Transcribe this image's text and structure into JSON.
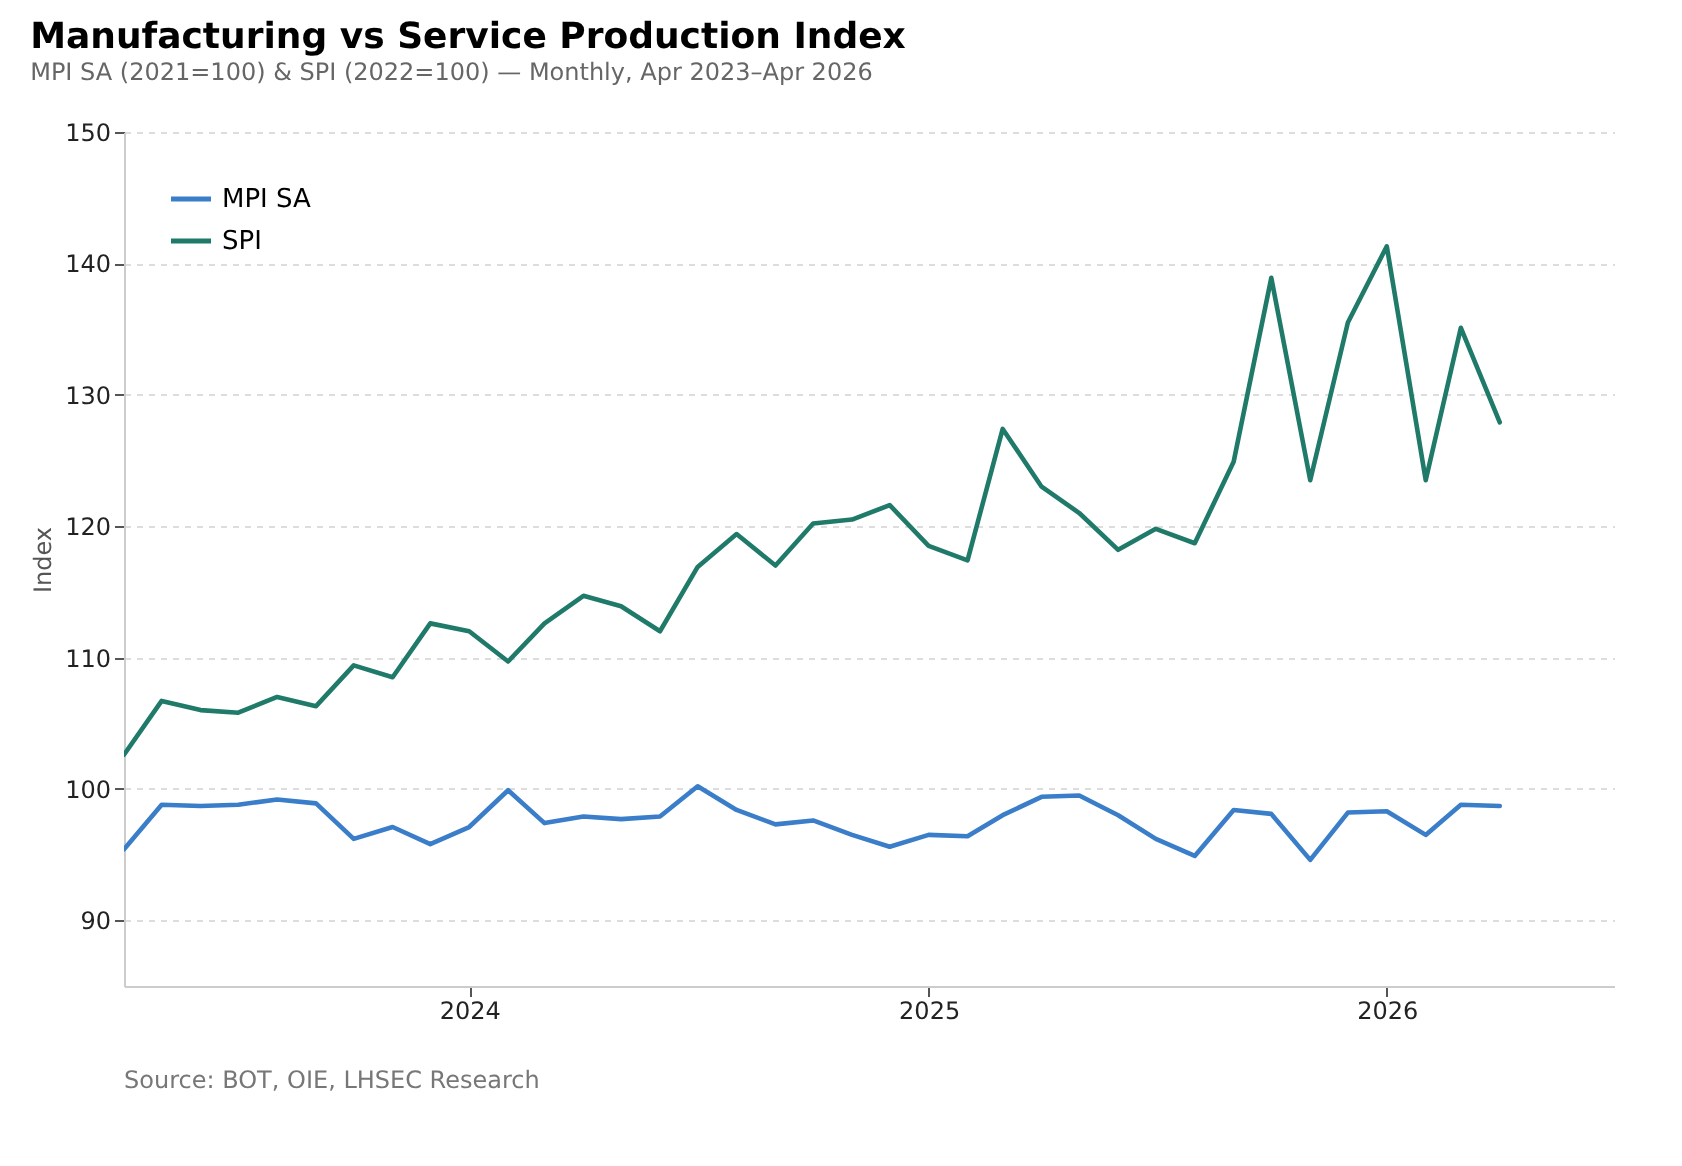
{
  "chart_data": {
    "type": "line",
    "title": "Manufacturing vs Service Production Index",
    "subtitle": "MPI SA (2021=100) & SPI (2022=100) — Monthly, Apr 2023–Apr 2026",
    "ylabel": "Index",
    "annotations": [
      "Source: BOT, OIE, LHSEC Research"
    ],
    "x": [
      "2023-04",
      "2023-05",
      "2023-06",
      "2023-07",
      "2023-08",
      "2023-09",
      "2023-10",
      "2023-11",
      "2023-12",
      "2024-01",
      "2024-02",
      "2024-03",
      "2024-04",
      "2024-05",
      "2024-06",
      "2024-07",
      "2024-08",
      "2024-09",
      "2024-10",
      "2024-11",
      "2024-12",
      "2025-01",
      "2025-02",
      "2025-03",
      "2025-04",
      "2025-05",
      "2025-06",
      "2025-07",
      "2025-08",
      "2025-09",
      "2025-10",
      "2025-11",
      "2025-12",
      "2026-01",
      "2026-02",
      "2026-03",
      "2026-04"
    ],
    "series": [
      {
        "name": "MPI SA",
        "color": "#3a7dc9",
        "values": [
          95.4,
          98.8,
          98.7,
          98.8,
          99.2,
          98.9,
          96.2,
          97.1,
          95.8,
          97.1,
          99.9,
          97.4,
          97.9,
          97.7,
          97.9,
          100.2,
          98.4,
          97.3,
          97.6,
          96.5,
          95.6,
          96.5,
          96.4,
          98.0,
          99.4,
          99.5,
          98.0,
          96.2,
          94.9,
          98.4,
          98.1,
          94.6,
          98.2,
          98.3,
          96.5,
          98.8,
          98.7
        ]
      },
      {
        "name": "SPI",
        "color": "#1f7a6a",
        "values": [
          102.6,
          106.7,
          106.0,
          105.8,
          107.0,
          106.3,
          109.4,
          108.5,
          112.6,
          112.0,
          109.7,
          112.6,
          114.7,
          113.9,
          112.0,
          116.9,
          119.4,
          117.0,
          120.2,
          120.5,
          121.6,
          118.5,
          117.4,
          127.4,
          123.0,
          121.0,
          118.2,
          119.8,
          118.7,
          124.9,
          138.9,
          123.5,
          135.5,
          141.3,
          123.5,
          135.1,
          127.9
        ]
      }
    ],
    "xlim": [
      "2023-04",
      "2026-07"
    ],
    "xticks": [
      "2024",
      "2025",
      "2026"
    ],
    "ylim": [
      85,
      150
    ],
    "yticks": [
      90,
      100,
      110,
      120,
      130,
      140,
      150
    ],
    "grid": "y",
    "legend": "top left",
    "marker": "none",
    "line_style": "solid"
  }
}
